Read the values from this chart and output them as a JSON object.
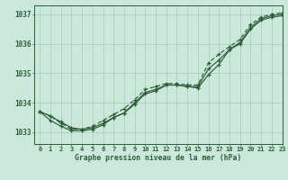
{
  "xlabel": "Graphe pression niveau de la mer (hPa)",
  "xlim": [
    -0.5,
    23
  ],
  "ylim": [
    1032.6,
    1037.3
  ],
  "yticks": [
    1033,
    1034,
    1035,
    1036,
    1037
  ],
  "xticks": [
    0,
    1,
    2,
    3,
    4,
    5,
    6,
    7,
    8,
    9,
    10,
    11,
    12,
    13,
    14,
    15,
    16,
    17,
    18,
    19,
    20,
    21,
    22,
    23
  ],
  "plot_bg": "#cce8dc",
  "fig_bg": "#cce8dc",
  "grid_color": "#aacfbe",
  "line_color": "#2a5e35",
  "series1": [
    1033.7,
    1033.55,
    1033.35,
    1033.15,
    1033.1,
    1033.15,
    1033.3,
    1033.5,
    1033.65,
    1034.0,
    1034.35,
    1034.45,
    1034.6,
    1034.6,
    1034.55,
    1034.55,
    1035.15,
    1035.45,
    1035.8,
    1036.05,
    1036.55,
    1036.85,
    1036.95,
    1037.0
  ],
  "series2": [
    1033.7,
    1033.4,
    1033.2,
    1033.05,
    1033.05,
    1033.1,
    1033.25,
    1033.5,
    1033.65,
    1033.95,
    1034.3,
    1034.4,
    1034.6,
    1034.6,
    1034.55,
    1034.5,
    1034.95,
    1035.3,
    1035.8,
    1036.0,
    1036.5,
    1036.8,
    1036.9,
    1036.95
  ],
  "series3": [
    1033.7,
    1033.55,
    1033.3,
    1033.1,
    1033.1,
    1033.2,
    1033.4,
    1033.6,
    1033.8,
    1034.1,
    1034.45,
    1034.55,
    1034.65,
    1034.65,
    1034.6,
    1034.6,
    1035.35,
    1035.65,
    1035.9,
    1036.15,
    1036.65,
    1036.9,
    1037.0,
    1037.05
  ],
  "tick_fontsize": 5,
  "xlabel_fontsize": 5.8,
  "figsize": [
    3.2,
    2.0
  ],
  "dpi": 100
}
